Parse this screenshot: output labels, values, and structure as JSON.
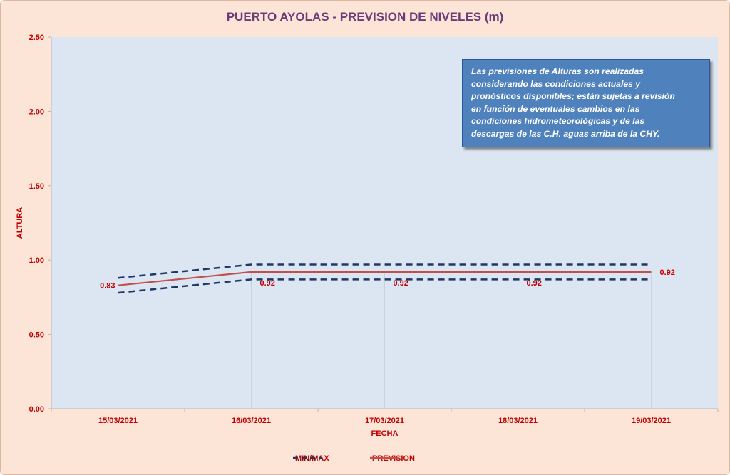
{
  "chart_data": {
    "type": "line",
    "title": "PUERTO AYOLAS - PREVISION DE NIVELES (m)",
    "xlabel": "FECHA",
    "ylabel": "ALTURA",
    "categories": [
      "15/03/2021",
      "16/03/2021",
      "17/03/2021",
      "18/03/2021",
      "19/03/2021"
    ],
    "ylim": [
      0,
      2.5
    ],
    "yticks": [
      "0.00",
      "0.50",
      "1.00",
      "1.50",
      "2.00",
      "2.50"
    ],
    "series": [
      {
        "name": "MIN/MAX",
        "role": "max",
        "values": [
          0.88,
          0.97,
          0.97,
          0.97,
          0.97
        ],
        "color": "#1f3864",
        "style": "dashed"
      },
      {
        "name": "MIN/MAX",
        "role": "min",
        "values": [
          0.78,
          0.87,
          0.87,
          0.87,
          0.87
        ],
        "color": "#1f3864",
        "style": "dashed"
      },
      {
        "name": "PREVISION",
        "values": [
          0.83,
          0.92,
          0.92,
          0.92,
          0.92
        ],
        "color": "#c0504d",
        "style": "solid"
      }
    ],
    "data_labels": [
      "0.83",
      "0.92",
      "0.92",
      "0.92",
      "0.92"
    ],
    "grid": false,
    "legend": "bottom",
    "plot_background": "#dce6f2",
    "page_background": "#fce4d6"
  },
  "annotation": {
    "text": "Las previsiones de Alturas son realizadas\nconsiderando las condiciones actuales y\npronósticos disponibles;  están sujetas a revisión\nen función de eventuales cambios en las\ncondiciones hidrometeorológicas y de las\ndescargas de las C.H. aguas arriba de la CHY."
  },
  "legend": {
    "minmax_label": "MIN/MAX",
    "prevision_label": "PREVISION"
  }
}
